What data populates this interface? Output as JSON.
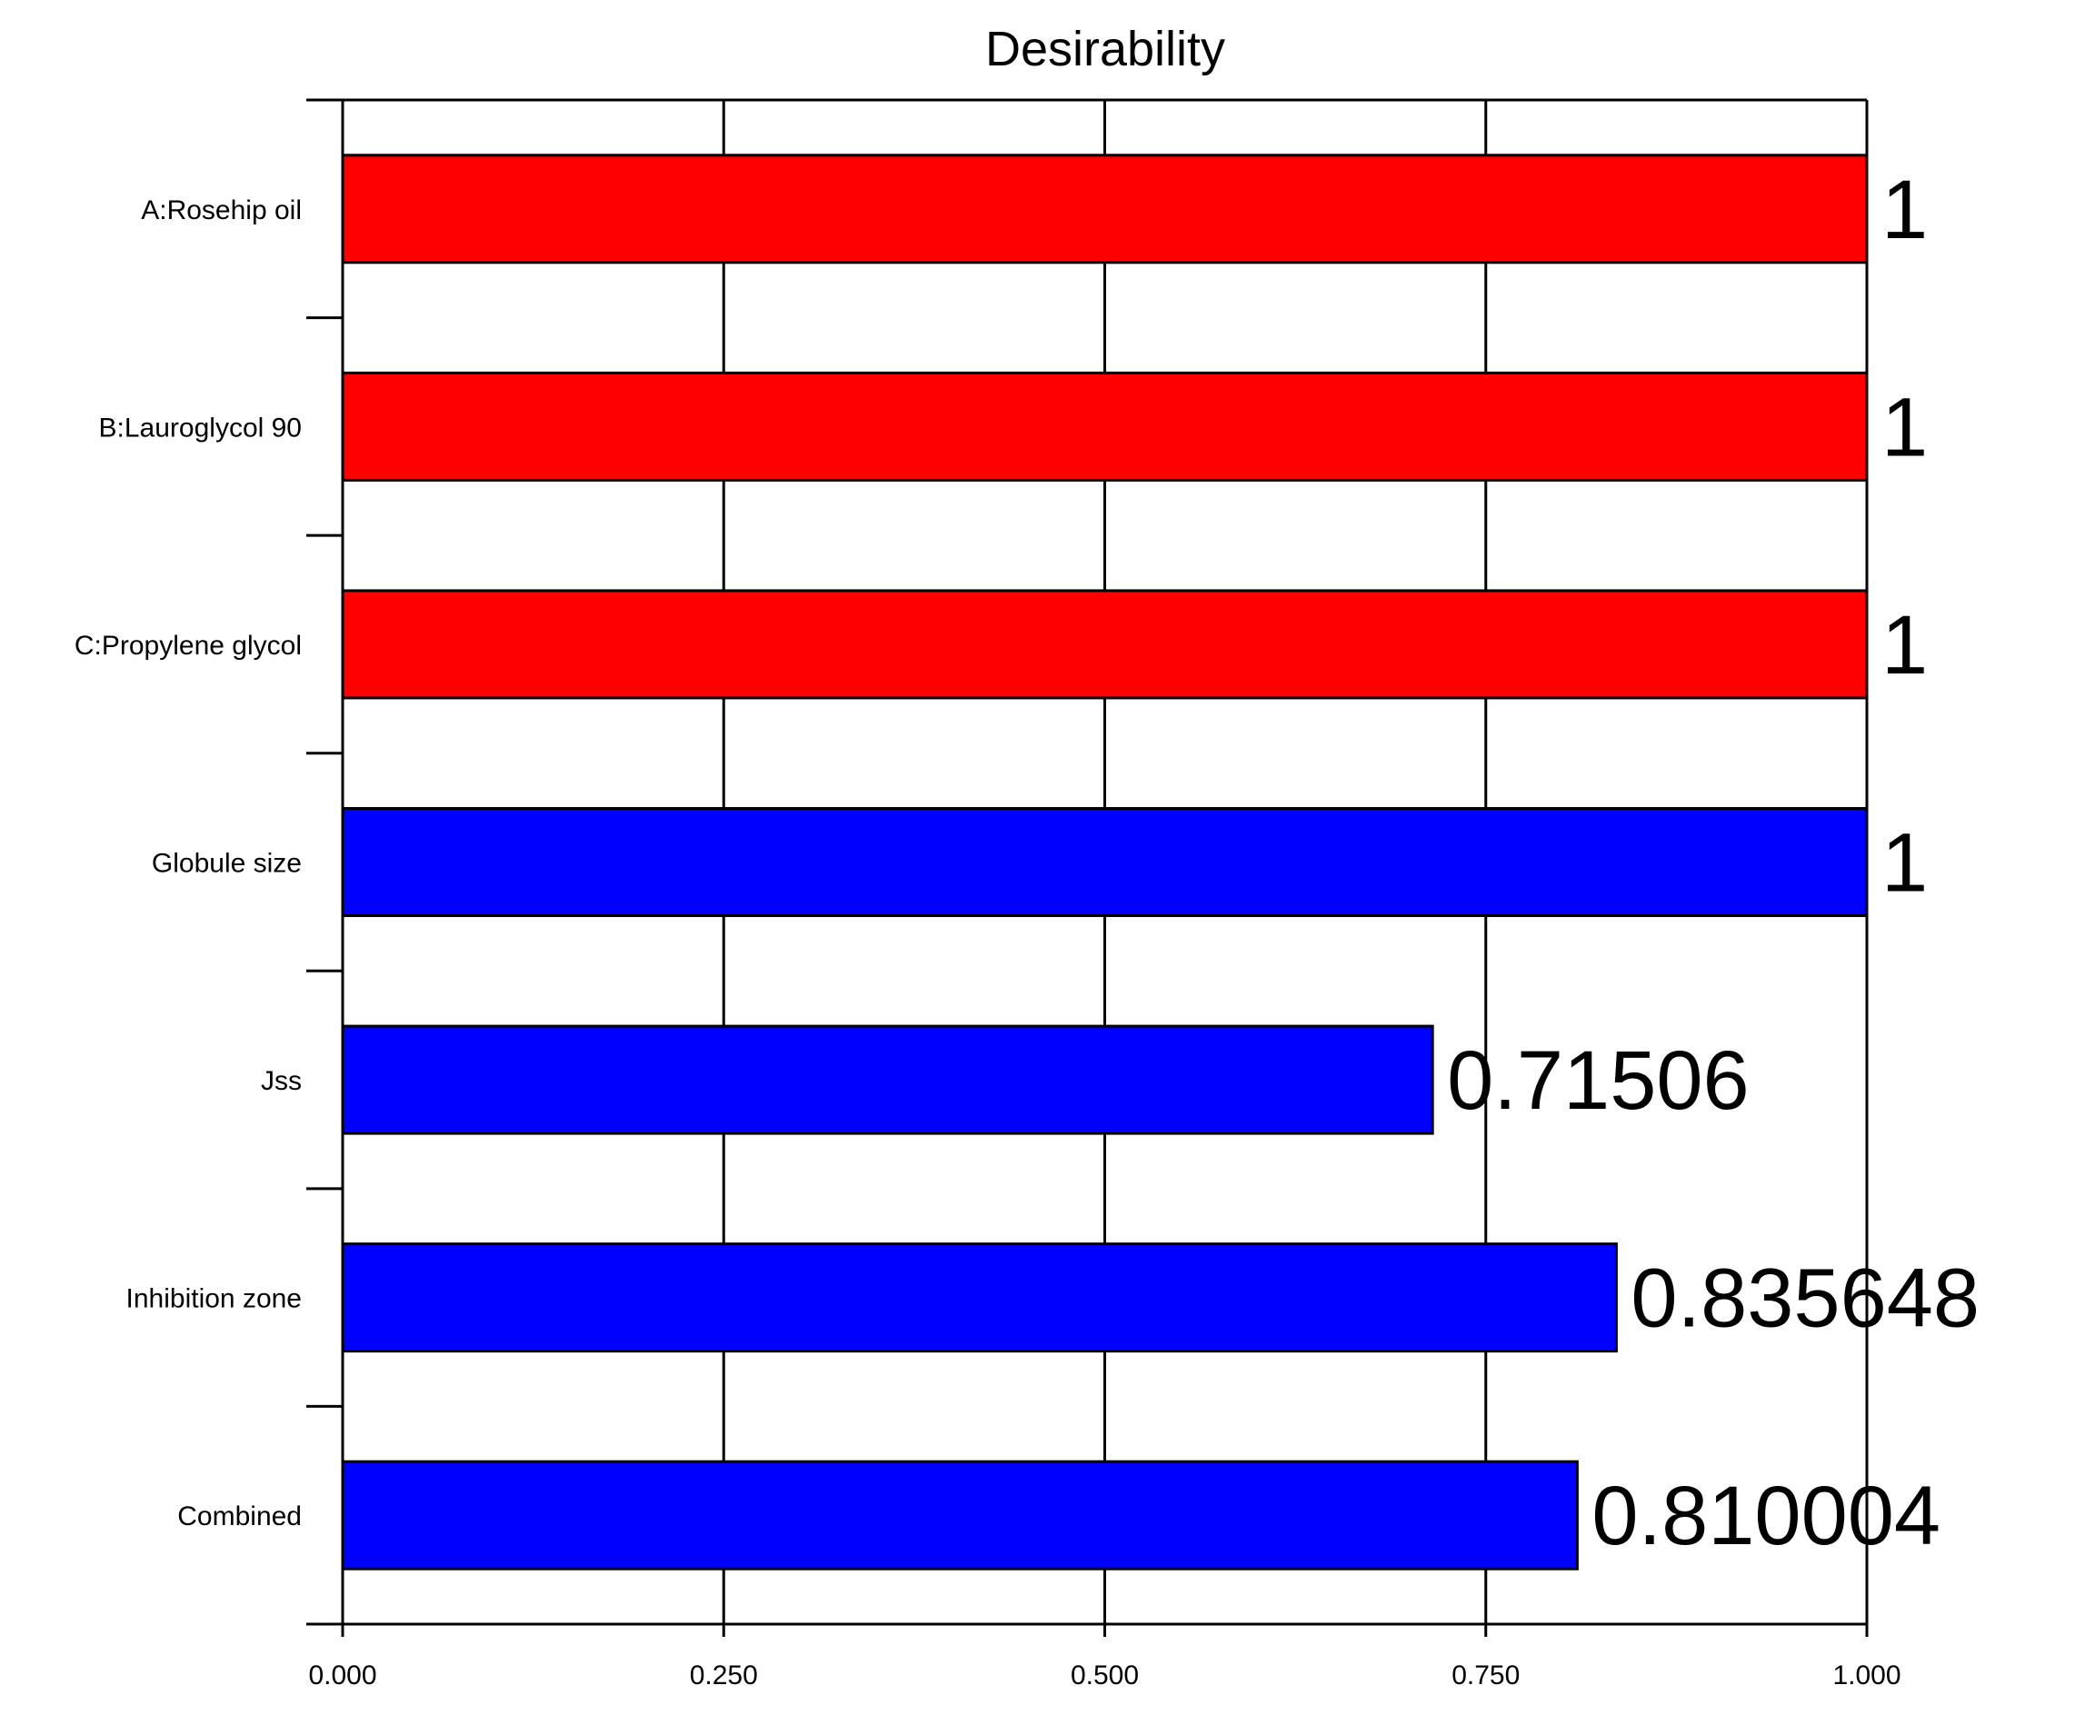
{
  "chart_data": {
    "type": "bar",
    "orientation": "horizontal",
    "title": "Desirability",
    "xlabel": "",
    "ylabel": "",
    "categories": [
      "A:Rosehip oil",
      "B:Lauroglycol 90",
      "C:Propylene glycol",
      "Globule size",
      "Jss",
      "Inhibition zone",
      "Combined"
    ],
    "values": [
      1,
      1,
      1,
      1,
      0.71506,
      0.835648,
      0.810004
    ],
    "value_labels": [
      "1",
      "1",
      "1",
      "1",
      "0.71506",
      "0.835648",
      "0.810004"
    ],
    "bar_colors": [
      "#ff0000",
      "#ff0000",
      "#ff0000",
      "#0000ff",
      "#0000ff",
      "#0000ff",
      "#0000ff"
    ],
    "xlim": [
      0,
      1
    ],
    "x_ticks": [
      0,
      0.25,
      0.5,
      0.75,
      1
    ],
    "x_tick_labels": [
      "0.000",
      "0.250",
      "0.500",
      "0.750",
      "1.000"
    ],
    "grid": "vertical",
    "legend": "none"
  }
}
